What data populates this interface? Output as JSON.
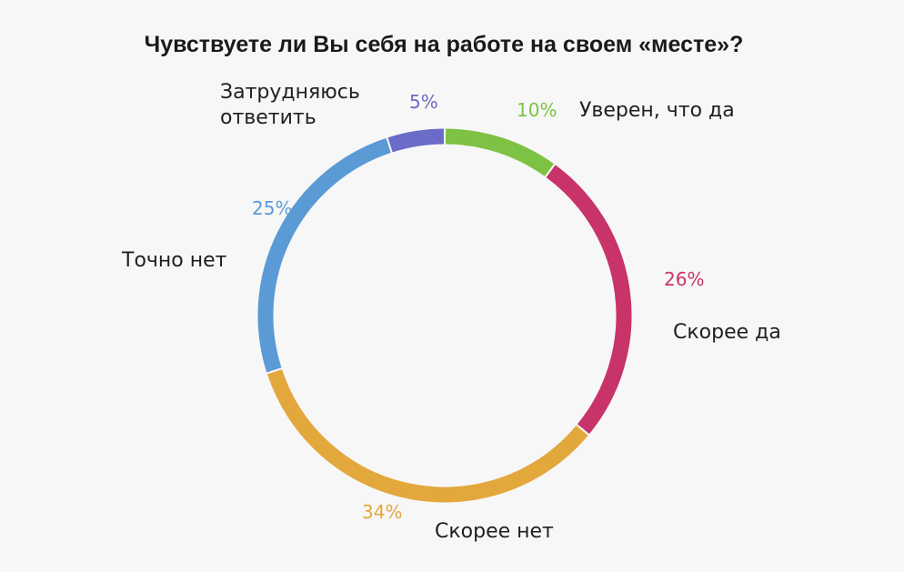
{
  "chart_data": {
    "type": "pie",
    "title": "Чувствуете ли Вы себя на работе на своем «месте»?",
    "slices": [
      {
        "label": "Уверен, что да",
        "label_lines": [
          "Уверен, что да"
        ],
        "value": 10,
        "value_label": "10%",
        "color": "#7dc242"
      },
      {
        "label": "Скорее да",
        "label_lines": [
          "Скорее да"
        ],
        "value": 26,
        "value_label": "26%",
        "color": "#c8336a"
      },
      {
        "label": "Скорее нет",
        "label_lines": [
          "Скорее нет"
        ],
        "value": 34,
        "value_label": "34%",
        "color": "#e3a83c"
      },
      {
        "label": "Точно нет",
        "label_lines": [
          "Точно нет"
        ],
        "value": 25,
        "value_label": "25%",
        "color": "#5b9bd5"
      },
      {
        "label": "Затрудняюсь ответить",
        "label_lines": [
          "Затрудняюсь",
          "ответить"
        ],
        "value": 5,
        "value_label": "5%",
        "color": "#6a6cc8"
      }
    ],
    "legend": "none"
  }
}
